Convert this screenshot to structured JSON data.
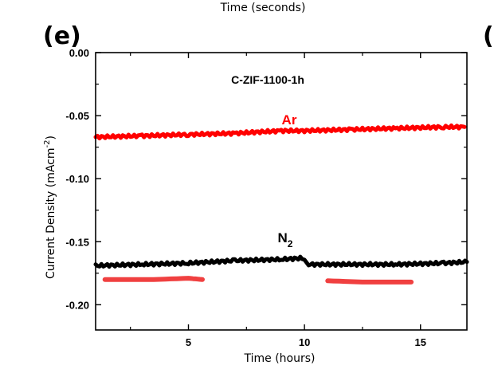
{
  "header_text": "Time (seconds)",
  "panel_label": "(e)",
  "next_panel_label": "(",
  "chart_data": {
    "type": "line",
    "title": "C-ZIF-1100-1h",
    "xlabel": "Time (hours)",
    "ylabel": "Current Density (mAcm",
    "ylabel_sup": "-2",
    "ylabel_close": ")",
    "xlim": [
      1,
      17
    ],
    "ylim": [
      -0.22,
      0.0
    ],
    "x_ticks": [
      5,
      10,
      15
    ],
    "x_tick_labels": [
      "5",
      "10",
      "15"
    ],
    "x_minor_ticks": [
      2.5,
      7.5,
      12.5
    ],
    "y_ticks": [
      0.0,
      -0.05,
      -0.1,
      -0.15,
      -0.2
    ],
    "y_tick_labels": [
      "0.00",
      "-0.05",
      "-0.10",
      "-0.15",
      "-0.20"
    ],
    "y_minor_ticks": [
      -0.025,
      -0.075,
      -0.125,
      -0.175
    ],
    "grid": false,
    "series": [
      {
        "name": "Ar",
        "label": "Ar",
        "color": "#ff0000",
        "x": [
          1,
          3,
          5,
          7,
          9,
          10,
          12,
          14,
          16,
          16.9
        ],
        "y": [
          -0.067,
          -0.066,
          -0.065,
          -0.064,
          -0.062,
          -0.062,
          -0.061,
          -0.06,
          -0.059,
          -0.059
        ]
      },
      {
        "name": "N2",
        "label": "N",
        "label_sub": "2",
        "color": "#000000",
        "x": [
          1,
          3,
          5,
          7,
          9,
          9.9,
          10.1,
          12,
          14,
          16,
          17
        ],
        "y": [
          -0.169,
          -0.168,
          -0.167,
          -0.165,
          -0.164,
          -0.163,
          -0.168,
          -0.168,
          -0.168,
          -0.167,
          -0.166
        ]
      },
      {
        "name": "marker-1",
        "color": "#f04040",
        "x": [
          1.4,
          3.5,
          5.0,
          5.6
        ],
        "y": [
          -0.18,
          -0.18,
          -0.179,
          -0.18
        ]
      },
      {
        "name": "marker-2",
        "color": "#f04040",
        "x": [
          11.0,
          12.5,
          14.6
        ],
        "y": [
          -0.181,
          -0.182,
          -0.182
        ]
      }
    ]
  }
}
